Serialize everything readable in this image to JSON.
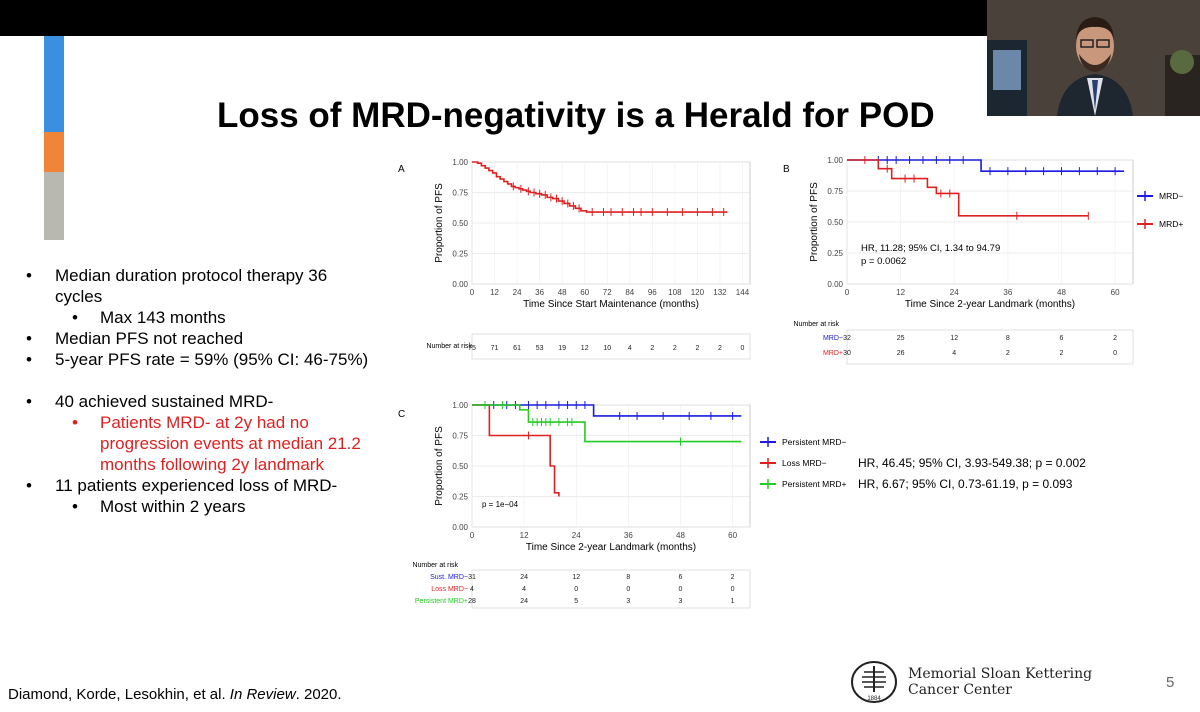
{
  "slide": {
    "title": "Loss of MRD-negativity is a Herald for POD",
    "page_number": "5",
    "citation": {
      "authors": "Diamond, Korde, Lesokhin, et al.",
      "journal": "In Review",
      "year": ". 2020."
    },
    "institution": {
      "line1": "Memorial Sloan Kettering",
      "line2": "Cancer Center",
      "seal_text": "1884"
    },
    "colors": {
      "accent_blue": "#3a8fe0",
      "accent_orange": "#f0853a",
      "accent_gray": "#b8b8b0",
      "red": "#e02020",
      "blue": "#1a1ae0",
      "green": "#22cc22"
    }
  },
  "bullets": [
    {
      "level": 1,
      "color": "black",
      "lines": [
        "Median duration protocol therapy 36",
        "cycles"
      ]
    },
    {
      "level": 2,
      "color": "black",
      "lines": [
        "Max 143 months"
      ]
    },
    {
      "level": 1,
      "color": "black",
      "lines": [
        "Median PFS not reached"
      ]
    },
    {
      "level": 1,
      "color": "black",
      "lines": [
        "5-year PFS rate = 59% (95% CI: 46-75%)"
      ]
    },
    {
      "level": 0,
      "color": "black",
      "lines": [
        ""
      ]
    },
    {
      "level": 1,
      "color": "black",
      "lines": [
        "40 achieved sustained MRD-"
      ]
    },
    {
      "level": 2,
      "color": "red",
      "lines": [
        "Patients MRD- at 2y had no",
        "progression events at median 21.2",
        "months following 2y landmark"
      ]
    },
    {
      "level": 1,
      "color": "black",
      "lines": [
        "11 patients experienced loss of MRD-"
      ]
    },
    {
      "level": 2,
      "color": "black",
      "lines": [
        "Most within 2 years"
      ]
    }
  ],
  "chart_data": [
    {
      "panel": "A",
      "type": "line",
      "xlabel": "Time Since Start Maintenance (months)",
      "ylabel": "Proportion of PFS",
      "xlim": [
        0,
        148
      ],
      "ylim": [
        0,
        1
      ],
      "xticks": [
        "0",
        "12",
        "24",
        "36",
        "48",
        "60",
        "72",
        "84",
        "96",
        "108",
        "120",
        "132",
        "144"
      ],
      "yticks": [
        "0.00",
        "0.25",
        "0.50",
        "0.75",
        "1.00"
      ],
      "series": [
        {
          "name": "All",
          "color": "#e02020",
          "x": [
            0,
            3,
            5,
            7,
            9,
            11,
            13,
            15,
            17,
            19,
            21,
            23,
            25,
            27,
            29,
            31,
            34,
            37,
            40,
            43,
            46,
            49,
            52,
            55,
            58,
            61,
            136
          ],
          "y": [
            1.0,
            0.99,
            0.97,
            0.95,
            0.93,
            0.91,
            0.88,
            0.86,
            0.84,
            0.82,
            0.8,
            0.79,
            0.78,
            0.77,
            0.76,
            0.75,
            0.74,
            0.73,
            0.71,
            0.7,
            0.68,
            0.66,
            0.64,
            0.62,
            0.6,
            0.59,
            0.59
          ],
          "censor_x": [
            22,
            26,
            30,
            33,
            36,
            39,
            42,
            45,
            48,
            51,
            54,
            57,
            64,
            70,
            74,
            80,
            86,
            90,
            96,
            104,
            112,
            120,
            128,
            134
          ]
        }
      ],
      "risk_table": {
        "label": "Number at risk",
        "rows": [
          {
            "name": "",
            "color": "#000000",
            "values": [
              "75",
              "71",
              "61",
              "53",
              "19",
              "12",
              "10",
              "4",
              "2",
              "2",
              "2",
              "2",
              "0"
            ]
          }
        ]
      }
    },
    {
      "panel": "B",
      "type": "line",
      "xlabel": "Time Since 2-year Landmark (months)",
      "ylabel": "Proportion of PFS",
      "xlim": [
        0,
        64
      ],
      "ylim": [
        0,
        1
      ],
      "xticks": [
        "0",
        "12",
        "24",
        "36",
        "48",
        "60"
      ],
      "yticks": [
        "0.00",
        "0.25",
        "0.50",
        "0.75",
        "1.00"
      ],
      "annotation": [
        "HR, 11.28; 95% CI, 1.34 to 94.79",
        "p = 0.0062"
      ],
      "series": [
        {
          "name": "MRD−",
          "color": "#1a1ae0",
          "x": [
            0,
            30,
            30,
            62
          ],
          "y": [
            1.0,
            1.0,
            0.91,
            0.91
          ],
          "censor_x": [
            7,
            9,
            11,
            14,
            17,
            20,
            23,
            26,
            32,
            36,
            40,
            44,
            48,
            52,
            56,
            60
          ]
        },
        {
          "name": "MRD+",
          "color": "#e02020",
          "x": [
            0,
            7,
            7,
            10,
            10,
            18,
            18,
            20,
            20,
            25,
            25,
            54
          ],
          "y": [
            1.0,
            1.0,
            0.93,
            0.93,
            0.85,
            0.85,
            0.78,
            0.78,
            0.73,
            0.73,
            0.55,
            0.55
          ],
          "censor_x": [
            4,
            9,
            13,
            15,
            21,
            23,
            38,
            54
          ]
        }
      ],
      "legend": [
        "MRD−",
        "MRD+"
      ],
      "risk_table": {
        "label": "Number at risk",
        "rows": [
          {
            "name": "MRD−",
            "color": "#1a1ae0",
            "values": [
              "32",
              "25",
              "12",
              "8",
              "6",
              "2"
            ]
          },
          {
            "name": "MRD+",
            "color": "#e02020",
            "values": [
              "30",
              "26",
              "4",
              "2",
              "2",
              "0"
            ]
          }
        ]
      }
    },
    {
      "panel": "C",
      "type": "line",
      "xlabel": "Time Since 2-year Landmark (months)",
      "ylabel": "Proportion of PFS",
      "xlim": [
        0,
        64
      ],
      "ylim": [
        0,
        1
      ],
      "xticks": [
        "0",
        "12",
        "24",
        "36",
        "48",
        "60"
      ],
      "yticks": [
        "0.00",
        "0.25",
        "0.50",
        "0.75",
        "1.00"
      ],
      "annotation": [
        "p = 1e−04"
      ],
      "series": [
        {
          "name": "Persistent MRD−",
          "color": "#1a1ae0",
          "x": [
            0,
            28,
            28,
            62
          ],
          "y": [
            1.0,
            1.0,
            0.91,
            0.91
          ],
          "censor_x": [
            5,
            8,
            10,
            13,
            15,
            17,
            20,
            22,
            24,
            26,
            34,
            38,
            44,
            50,
            55,
            60
          ]
        },
        {
          "name": "Loss MRD−",
          "color": "#e02020",
          "x": [
            0,
            4,
            4,
            18,
            18,
            19,
            19,
            20,
            20
          ],
          "y": [
            1.0,
            1.0,
            0.75,
            0.75,
            0.5,
            0.5,
            0.28,
            0.28,
            0.25
          ],
          "censor_x": [
            13
          ]
        },
        {
          "name": "Persistent MRD+",
          "color": "#22cc22",
          "x": [
            0,
            11,
            11,
            13,
            13,
            26,
            26,
            62
          ],
          "y": [
            1.0,
            1.0,
            0.96,
            0.96,
            0.86,
            0.86,
            0.7,
            0.7
          ],
          "censor_x": [
            3,
            7,
            14,
            15,
            16,
            17,
            18,
            20,
            22,
            23,
            48
          ]
        }
      ],
      "legend": [
        "Persistent MRD−",
        "Loss MRD−",
        "Persistent MRD+"
      ],
      "legend_stats": [
        "",
        "HR, 46.45; 95% CI, 3.93-549.38; p = 0.002",
        "HR, 6.67; 95% CI, 0.73-61.19, p = 0.093"
      ],
      "risk_table": {
        "label": "Number at risk",
        "rows": [
          {
            "name": "Sust. MRD−",
            "color": "#1a1ae0",
            "values": [
              "31",
              "24",
              "12",
              "8",
              "6",
              "2"
            ]
          },
          {
            "name": "Loss MRD−",
            "color": "#e02020",
            "values": [
              "4",
              "4",
              "0",
              "0",
              "0",
              "0"
            ]
          },
          {
            "name": "Persistent MRD+",
            "color": "#22cc22",
            "values": [
              "28",
              "24",
              "5",
              "3",
              "3",
              "1"
            ]
          }
        ]
      }
    }
  ]
}
